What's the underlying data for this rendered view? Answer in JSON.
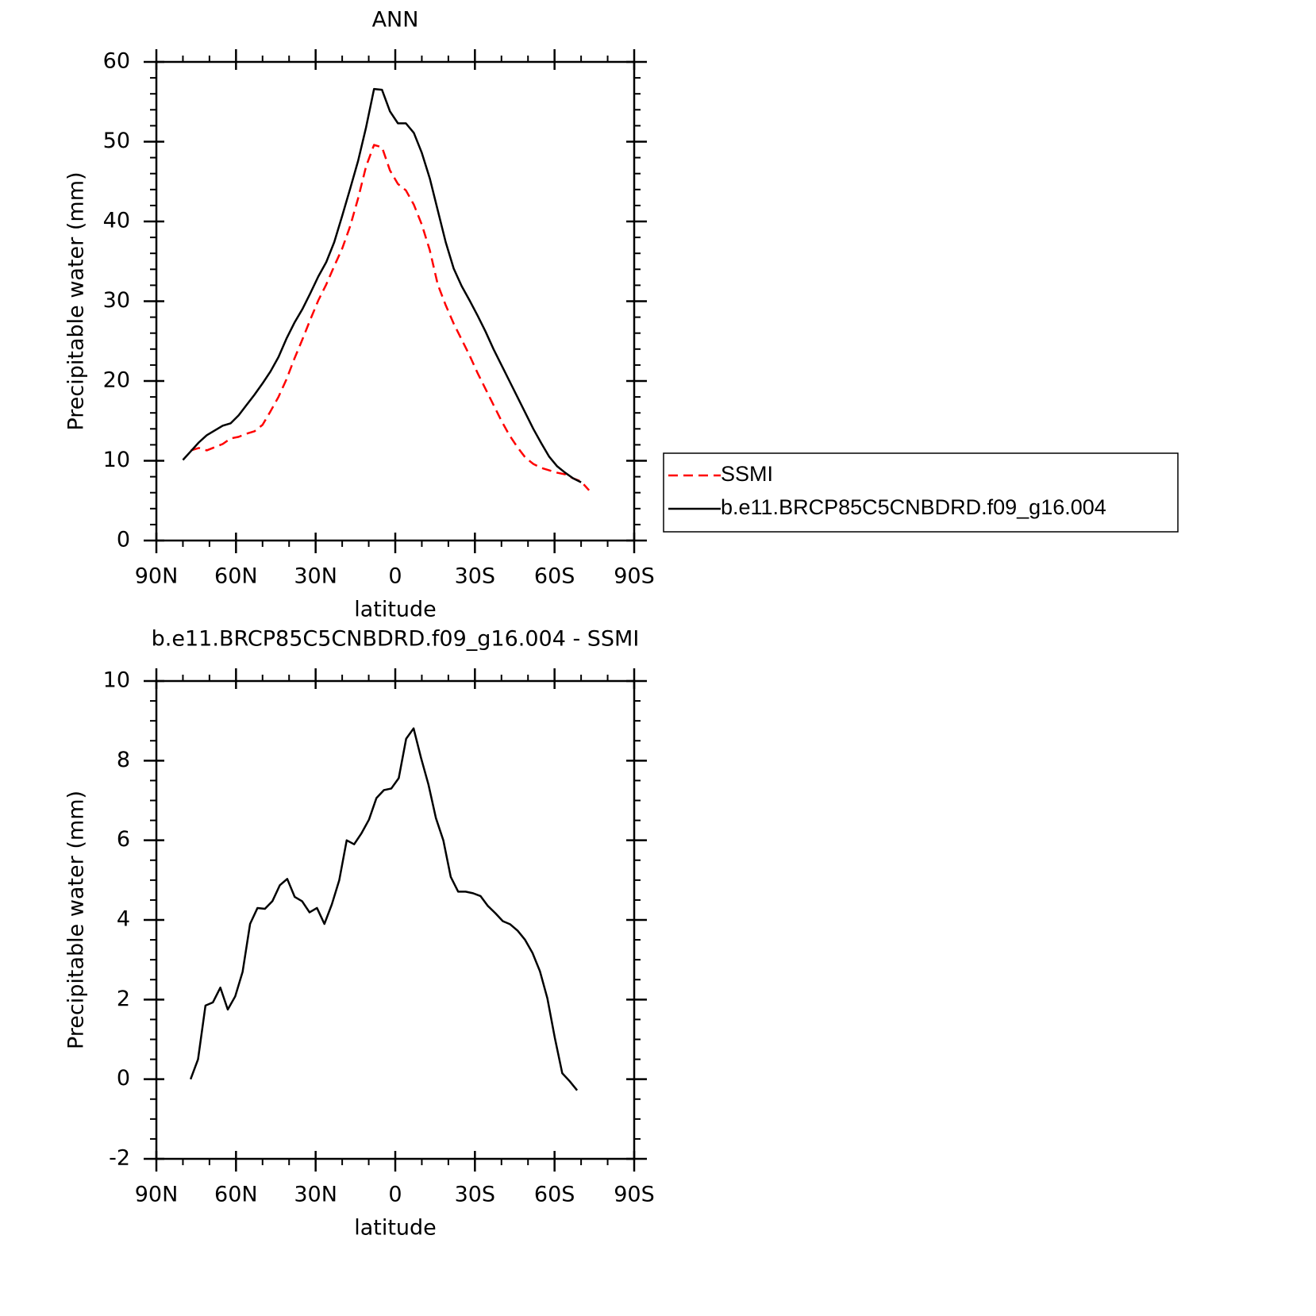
{
  "chart_data": [
    {
      "type": "line",
      "title": "ANN",
      "xlabel": "latitude",
      "ylabel": "Precipitable water (mm)",
      "x": [
        80,
        77,
        74,
        71,
        68,
        65,
        62,
        59,
        56,
        53,
        50,
        47,
        44,
        41,
        38,
        35,
        32,
        29,
        26,
        23,
        20,
        17,
        14,
        11,
        8,
        5,
        2,
        -1,
        -4,
        -7,
        -10,
        -13,
        -16,
        -19,
        -22,
        -25,
        -28,
        -31,
        -34,
        -37,
        -40,
        -43,
        -46,
        -49,
        -52,
        -55,
        -58,
        -61,
        -64,
        -67,
        -70,
        -73
      ],
      "series": [
        {
          "name": "SSMI",
          "color": "#ff0000",
          "style": "dashed",
          "values": [
            null,
            11.3,
            11.6,
            11.3,
            11.7,
            12.1,
            12.8,
            13.0,
            13.4,
            13.7,
            14.5,
            16.2,
            18.0,
            20.2,
            22.8,
            25.2,
            27.7,
            30.1,
            32.1,
            34.4,
            36.6,
            39.4,
            42.9,
            46.9,
            49.6,
            49.3,
            46.4,
            44.7,
            43.9,
            42.1,
            39.6,
            36.4,
            32.1,
            29.5,
            27.2,
            25.2,
            23.2,
            21.0,
            19.0,
            17.0,
            15.0,
            13.2,
            11.7,
            10.4,
            9.6,
            9.1,
            8.8,
            8.5,
            8.3,
            7.8,
            7.4,
            6.3
          ]
        },
        {
          "name": "b.e11.BRCP85C5CNBDRD.f09_g16.004",
          "color": "#000000",
          "style": "solid",
          "values": [
            10.1,
            11.2,
            12.3,
            13.2,
            13.8,
            14.4,
            14.7,
            15.7,
            17.0,
            18.3,
            19.7,
            21.2,
            23.0,
            25.3,
            27.3,
            29.0,
            31.0,
            33.1,
            34.9,
            37.4,
            40.7,
            44.1,
            47.6,
            51.8,
            56.6,
            56.5,
            53.8,
            52.3,
            52.3,
            51.1,
            48.6,
            45.4,
            41.4,
            37.4,
            34.1,
            31.9,
            30.1,
            28.2,
            26.2,
            24.0,
            22.0,
            20.0,
            18.0,
            16.0,
            14.0,
            12.2,
            10.5,
            9.3,
            8.5,
            7.8,
            7.3,
            null
          ]
        }
      ],
      "xlim": [
        90,
        -90
      ],
      "xticks": [
        {
          "value": 90,
          "label": "90N"
        },
        {
          "value": 60,
          "label": "60N"
        },
        {
          "value": 30,
          "label": "30N"
        },
        0,
        {
          "value": -30,
          "label": "30S"
        },
        {
          "value": -60,
          "label": "60S"
        },
        {
          "value": -90,
          "label": "90S"
        }
      ],
      "xminorticks": [
        80,
        70,
        50,
        40,
        20,
        10,
        -10,
        -20,
        -40,
        -50,
        -70,
        -80
      ],
      "ylim": [
        0,
        60
      ],
      "yticks": [
        0,
        10,
        20,
        30,
        40,
        50,
        60
      ],
      "yminorticks": [
        2,
        4,
        6,
        8,
        12,
        14,
        16,
        18,
        22,
        24,
        26,
        28,
        32,
        34,
        36,
        38,
        42,
        44,
        46,
        48,
        52,
        54,
        56,
        58
      ],
      "legend": "outside right"
    },
    {
      "type": "line",
      "title": "b.e11.BRCP85C5CNBDRD.f09_g16.004 - SSMI",
      "xlabel": "latitude",
      "ylabel": "Precipitable water (mm)",
      "x": [
        77.1,
        74.3,
        71.5,
        68.7,
        65.9,
        63.1,
        60.3,
        57.5,
        54.7,
        51.9,
        49.1,
        46.3,
        43.5,
        40.7,
        37.9,
        35.1,
        32.3,
        29.5,
        26.7,
        23.9,
        21.1,
        18.3,
        15.5,
        12.7,
        9.9,
        7.1,
        4.3,
        1.5,
        -1.3,
        -4.1,
        -6.9,
        -9.7,
        -12.5,
        -15.3,
        -18.1,
        -20.9,
        -23.7,
        -26.5,
        -29.3,
        -32.1,
        -34.9,
        -37.7,
        -40.5,
        -43.3,
        -46.1,
        -48.9,
        -51.7,
        -54.5,
        -57.3,
        -60.1,
        -62.9,
        -65.7,
        -68.5
      ],
      "values": [
        0.0,
        0.5,
        1.85,
        1.93,
        2.3,
        1.75,
        2.08,
        2.7,
        3.9,
        4.3,
        4.28,
        4.47,
        4.87,
        5.03,
        4.58,
        4.47,
        4.19,
        4.3,
        3.9,
        4.39,
        5.0,
        6.0,
        5.9,
        6.18,
        6.52,
        7.06,
        7.26,
        7.3,
        7.56,
        8.55,
        8.81,
        8.07,
        7.4,
        6.56,
        6.0,
        5.08,
        4.71,
        4.71,
        4.67,
        4.6,
        4.35,
        4.17,
        3.97,
        3.89,
        3.73,
        3.5,
        3.17,
        2.71,
        2.03,
        1.04,
        0.15,
        -0.05,
        -0.28
      ],
      "color": "#000000",
      "xlim": [
        90,
        -90
      ],
      "xticks": [
        {
          "value": 90,
          "label": "90N"
        },
        {
          "value": 60,
          "label": "60N"
        },
        {
          "value": 30,
          "label": "30N"
        },
        0,
        {
          "value": -30,
          "label": "30S"
        },
        {
          "value": -60,
          "label": "60S"
        },
        {
          "value": -90,
          "label": "90S"
        }
      ],
      "xminorticks": [
        80,
        70,
        50,
        40,
        20,
        10,
        -10,
        -20,
        -40,
        -50,
        -70,
        -80
      ],
      "ylim": [
        -2,
        10
      ],
      "yticks": [
        -2,
        0,
        2,
        4,
        6,
        8,
        10
      ],
      "yminorticks": [
        -1.5,
        -1,
        -0.5,
        0.5,
        1,
        1.5,
        2.5,
        3,
        3.5,
        4.5,
        5,
        5.5,
        6.5,
        7,
        7.5,
        8.5,
        9,
        9.5
      ]
    }
  ]
}
